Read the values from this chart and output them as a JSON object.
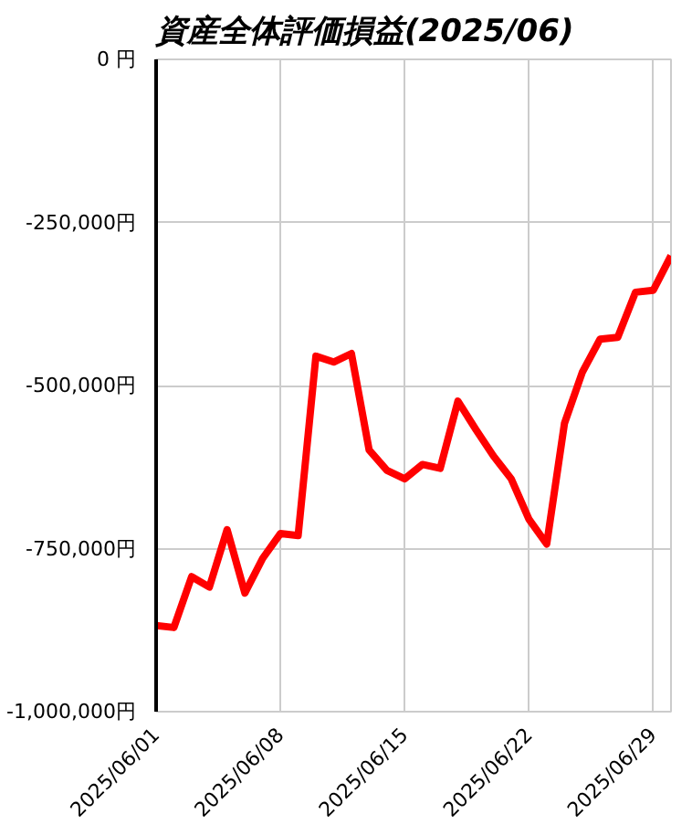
{
  "chart_data": {
    "type": "line",
    "title": "資産全体評価損益(2025/06)",
    "x": [
      "2025-06-01",
      "2025-06-02",
      "2025-06-03",
      "2025-06-04",
      "2025-06-05",
      "2025-06-06",
      "2025-06-07",
      "2025-06-08",
      "2025-06-09",
      "2025-06-10",
      "2025-06-11",
      "2025-06-12",
      "2025-06-13",
      "2025-06-14",
      "2025-06-15",
      "2025-06-16",
      "2025-06-17",
      "2025-06-18",
      "2025-06-19",
      "2025-06-20",
      "2025-06-21",
      "2025-06-22",
      "2025-06-23",
      "2025-06-24",
      "2025-06-25",
      "2025-06-26",
      "2025-06-27",
      "2025-06-28",
      "2025-06-29",
      "2025-06-30"
    ],
    "series": [
      {
        "color": "#ff0000",
        "values": [
          -868000,
          -871000,
          -793000,
          -809000,
          -721000,
          -818000,
          -765000,
          -727000,
          -730000,
          -455000,
          -464000,
          -451000,
          -599000,
          -630000,
          -643000,
          -621000,
          -627000,
          -524000,
          -567000,
          -608000,
          -643000,
          -705000,
          -743000,
          -558000,
          -480000,
          -429000,
          -426000,
          -357000,
          -354000,
          -301000
        ]
      }
    ],
    "xlim": [
      "2025-06-01",
      "2025-06-30"
    ],
    "xticks": [
      {
        "value": "2025-06-01",
        "label": "2025/06/01"
      },
      {
        "value": "2025-06-08",
        "label": "2025/06/08"
      },
      {
        "value": "2025-06-15",
        "label": "2025/06/15"
      },
      {
        "value": "2025-06-22",
        "label": "2025/06/22"
      },
      {
        "value": "2025-06-29",
        "label": "2025/06/29"
      }
    ],
    "ylim": [
      -1000000,
      0
    ],
    "yticks": [
      {
        "value": 0,
        "label": "0 円"
      },
      {
        "value": -250000,
        "label": "-250,000円"
      },
      {
        "value": -500000,
        "label": "-500,000円"
      },
      {
        "value": -750000,
        "label": "-750,000円"
      },
      {
        "value": -1000000,
        "label": "-1,000,000円"
      }
    ],
    "grid": true,
    "marker": "none",
    "line_style": "solid"
  }
}
